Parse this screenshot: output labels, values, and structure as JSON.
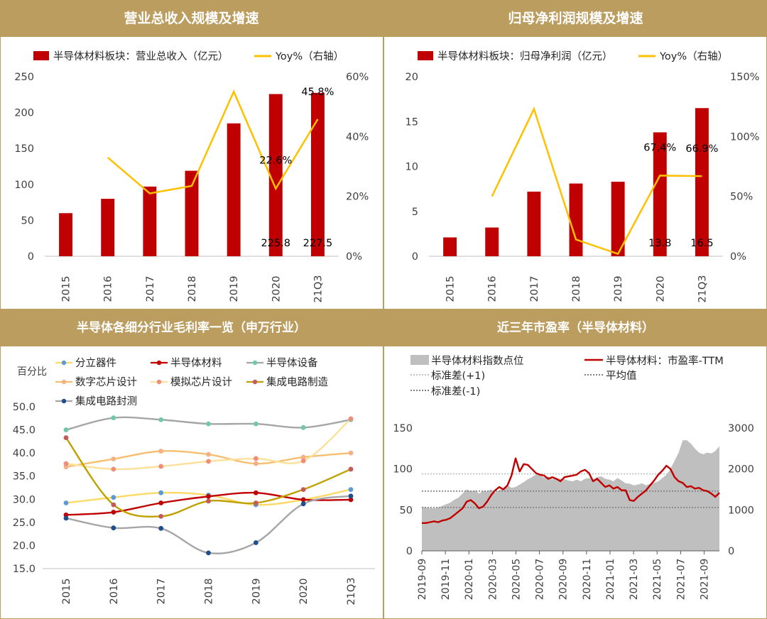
{
  "colors": {
    "header_bg": "#bb9d60",
    "bar": "#c00000",
    "yoy": "#ffc000",
    "area": "#bfbfbf",
    "pe": "#c00000",
    "dotted": "#7f7f7f",
    "dotted_light": "#bfbfbf"
  },
  "panels": [
    {
      "id": "revenue",
      "title": "营业总收入规模及增速",
      "legend_bar": "半导体材料板块：营业总收入（亿元）",
      "legend_line": "Yoy%（右轴）",
      "chart_data": {
        "type": "bar",
        "categories": [
          "2015",
          "2016",
          "2017",
          "2018",
          "2019",
          "2020",
          "21Q3"
        ],
        "series": [
          {
            "name": "半导体材料板块：营业总收入（亿元）",
            "type": "bar",
            "axis": "left",
            "values": [
              60,
              80,
              97,
              119,
              185,
              225.8,
              227.5
            ]
          },
          {
            "name": "Yoy%（右轴）",
            "type": "line",
            "axis": "right",
            "values": [
              null,
              33,
              21,
              23.5,
              55,
              22.6,
              45.8
            ]
          }
        ],
        "left_ticks": [
          "250",
          "200",
          "150",
          "100",
          "50",
          "0"
        ],
        "right_ticks": [
          "60%",
          "40%",
          "20%",
          "0%"
        ],
        "ylim_left": [
          0,
          250
        ],
        "ylim_right": [
          0,
          60
        ],
        "data_labels": [
          {
            "text": "225.8",
            "cat": 5,
            "at": "bar_base"
          },
          {
            "text": "227.5",
            "cat": 6,
            "at": "bar_base"
          },
          {
            "text": "22.6%",
            "cat": 5,
            "at": "line"
          },
          {
            "text": "45.8%",
            "cat": 6,
            "at": "line"
          }
        ]
      }
    },
    {
      "id": "profit",
      "title": "归母净利润规模及增速",
      "legend_bar": "半导体材料板块：归母净利润（亿元）",
      "legend_line": "Yoy%（右轴）",
      "chart_data": {
        "type": "bar",
        "categories": [
          "2015",
          "2016",
          "2017",
          "2018",
          "2019",
          "2020",
          "21Q3"
        ],
        "series": [
          {
            "name": "半导体材料板块：归母净利润（亿元）",
            "type": "bar",
            "axis": "left",
            "values": [
              2.1,
              3.2,
              7.2,
              8.1,
              8.3,
              13.8,
              16.5
            ]
          },
          {
            "name": "Yoy%（右轴）",
            "type": "line",
            "axis": "right",
            "values": [
              null,
              50,
              123,
              14,
              2,
              67.4,
              66.9
            ]
          }
        ],
        "left_ticks": [
          "20",
          "15",
          "10",
          "5",
          "0"
        ],
        "right_ticks": [
          "150%",
          "100%",
          "50%",
          "0%"
        ],
        "ylim_left": [
          0,
          20
        ],
        "ylim_right": [
          0,
          150
        ],
        "data_labels": [
          {
            "text": "13.8",
            "cat": 5,
            "at": "bar_base"
          },
          {
            "text": "16.5",
            "cat": 6,
            "at": "bar_base"
          },
          {
            "text": "67.4%",
            "cat": 5,
            "at": "line"
          },
          {
            "text": "66.9%",
            "cat": 6,
            "at": "line"
          }
        ]
      }
    },
    {
      "id": "margin",
      "title": "半导体各细分行业毛利率一览（申万行业）",
      "ylabel": "百分比",
      "chart_data": {
        "type": "line",
        "categories": [
          "2015",
          "2016",
          "2017",
          "2018",
          "2019",
          "2020",
          "21Q3"
        ],
        "ylim": [
          15,
          50
        ],
        "y_ticks": [
          "50.0",
          "45.0",
          "40.0",
          "35.0",
          "30.0",
          "25.0",
          "20.0",
          "15.0"
        ],
        "series": [
          {
            "name": "分立器件",
            "color": "#5b9bd5",
            "line": "#ffd966",
            "values": [
              29.2,
              30.4,
              31.4,
              30.9,
              28.8,
              29.9,
              32.1
            ]
          },
          {
            "name": "半导体材料",
            "color": "#c00000",
            "line": "#c00000",
            "values": [
              26.6,
              27.2,
              29.2,
              30.6,
              31.4,
              29.9,
              29.9
            ]
          },
          {
            "name": "半导体设备",
            "color": "#70c8a8",
            "line": "#a6a6a6",
            "values": [
              45.0,
              47.6,
              47.2,
              46.3,
              46.3,
              45.5,
              47.2
            ]
          },
          {
            "name": "数字芯片设计",
            "color": "#f4b183",
            "line": "#f8be70",
            "values": [
              37.0,
              38.7,
              40.4,
              39.7,
              37.7,
              39.1,
              40.0
            ]
          },
          {
            "name": "模拟芯片设计",
            "color": "#f08c78",
            "line": "#fde09a",
            "values": [
              37.7,
              36.5,
              37.1,
              38.2,
              38.8,
              38.3,
              47.4
            ]
          },
          {
            "name": "集成电路制造",
            "color": "#c55a5a",
            "line": "#bfa100",
            "values": [
              43.3,
              28.8,
              26.3,
              29.6,
              29.2,
              32.1,
              36.5
            ]
          },
          {
            "name": "集成电路封测",
            "color": "#1f4e8c",
            "line": "#a6a6a6",
            "values": [
              25.9,
              23.8,
              23.7,
              18.4,
              20.6,
              29.0,
              30.7
            ]
          }
        ]
      }
    },
    {
      "id": "pe",
      "title": "近三年市盈率（半导体材料）",
      "legend": {
        "area": "半导体材料指数点位",
        "pe": "半导体材料：市盈率-TTM",
        "std_plus": "标准差(+1)",
        "mean": "平均值",
        "std_minus": "标准差(-1)"
      },
      "chart_data": {
        "type": "area",
        "x_ticks": [
          "2019-09",
          "2019-11",
          "2020-01",
          "2020-03",
          "2020-05",
          "2020-07",
          "2020-09",
          "2020-11",
          "2021-01",
          "2021-03",
          "2021-05",
          "2021-07",
          "2021-09"
        ],
        "left_ticks": [
          "150",
          "100",
          "50",
          "0"
        ],
        "right_ticks": [
          "3000",
          "2000",
          "1000",
          "0"
        ],
        "ylim_left": [
          0,
          150
        ],
        "ylim_right": [
          0,
          3000
        ],
        "std_plus": 94,
        "mean": 73,
        "std_minus": 53,
        "index_points": [
          1080,
          1060,
          1050,
          1040,
          1060,
          1100,
          1140,
          1180,
          1250,
          1300,
          1400,
          1500,
          1450,
          1480,
          1400,
          1460,
          1450,
          1500,
          1420,
          1480,
          1550,
          1600,
          1540,
          1560,
          1620,
          1680,
          1750,
          1800,
          1870,
          1850,
          1790,
          1820,
          1750,
          1780,
          1760,
          1750,
          1720,
          1700,
          1740,
          1700,
          1760,
          1780,
          1750,
          1800,
          1820,
          1760,
          1740,
          1700,
          1780,
          1720,
          1650,
          1640,
          1600,
          1620,
          1650,
          1600,
          1640,
          1660,
          1700,
          1780,
          1860,
          2000,
          2200,
          2400,
          2700,
          2700,
          2620,
          2500,
          2400,
          2360,
          2400,
          2380,
          2440,
          2560
        ],
        "pe_values": [
          34,
          34,
          35,
          36,
          35,
          37,
          38,
          40,
          44,
          48,
          52,
          60,
          62,
          58,
          52,
          54,
          60,
          68,
          74,
          78,
          75,
          80,
          92,
          113,
          97,
          106,
          105,
          100,
          95,
          93,
          92,
          88,
          90,
          88,
          85,
          90,
          91,
          92,
          93,
          97,
          99,
          95,
          85,
          88,
          83,
          78,
          80,
          76,
          78,
          74,
          74,
          62,
          61,
          66,
          70,
          74,
          80,
          86,
          93,
          98,
          104,
          100,
          90,
          85,
          83,
          78,
          79,
          76,
          77,
          74,
          73,
          70,
          66,
          71
        ]
      }
    }
  ]
}
